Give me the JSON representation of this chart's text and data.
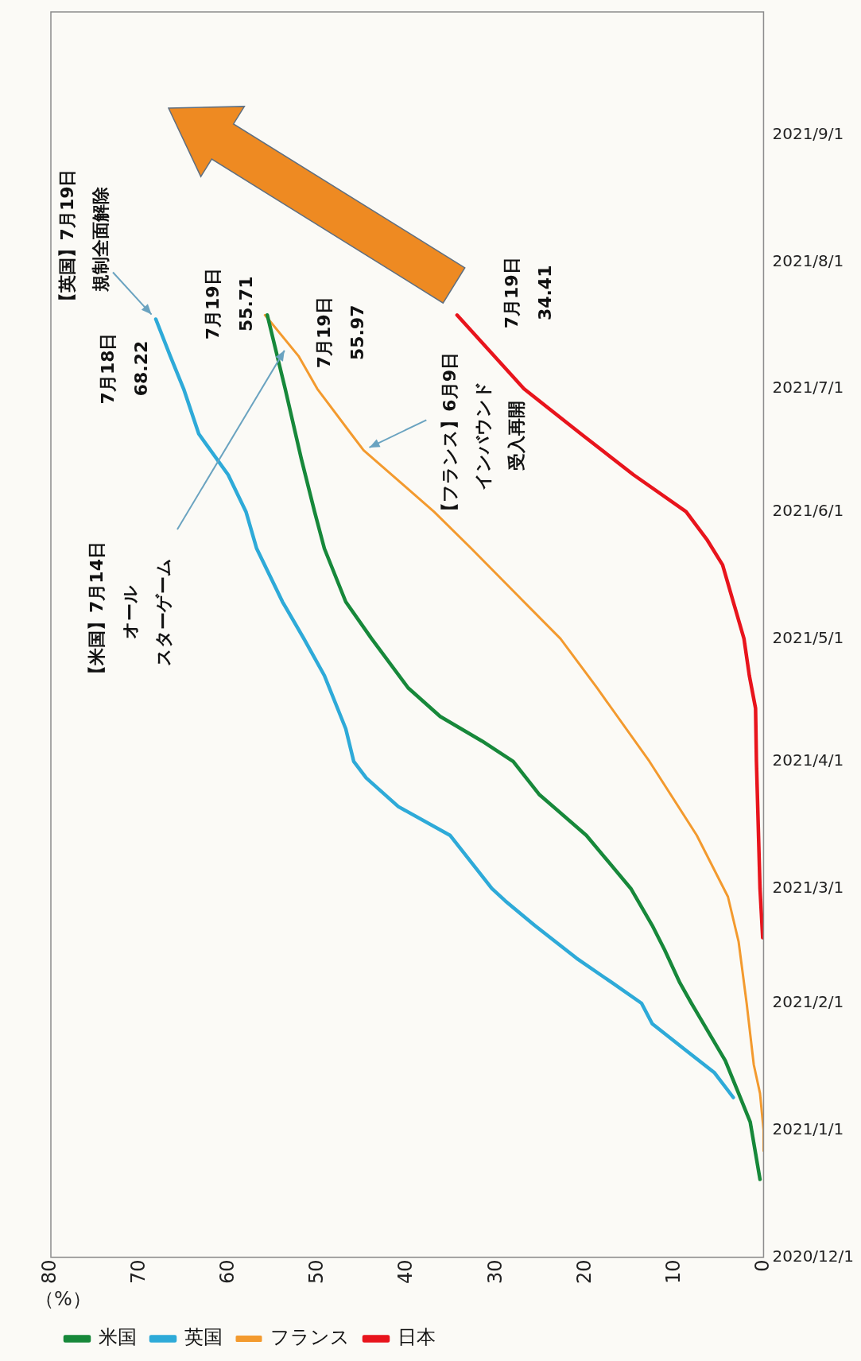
{
  "chart_data": {
    "type": "line",
    "orientation": "horizontal",
    "xlabel": "（%）",
    "legend": "bottom left",
    "ylim": [
      "2020-12-01",
      "2021-10-01"
    ],
    "yticks": [
      {
        "value": "2020-12-01",
        "label": "2020/12/1"
      },
      {
        "value": "2021-01-01",
        "label": "2021/1/1"
      },
      {
        "value": "2021-02-01",
        "label": "2021/2/1"
      },
      {
        "value": "2021-03-01",
        "label": "2021/3/1"
      },
      {
        "value": "2021-04-01",
        "label": "2021/4/1"
      },
      {
        "value": "2021-05-01",
        "label": "2021/5/1"
      },
      {
        "value": "2021-06-01",
        "label": "2021/6/1"
      },
      {
        "value": "2021-07-01",
        "label": "2021/7/1"
      },
      {
        "value": "2021-08-01",
        "label": "2021/8/1"
      },
      {
        "value": "2021-09-01",
        "label": "2021/9/1"
      }
    ],
    "xlim": [
      80,
      0
    ],
    "xticks": [
      80,
      70,
      60,
      50,
      40,
      30,
      20,
      10,
      0
    ],
    "series": [
      {
        "name": "米国",
        "color": "#17883a",
        "x": [
          "2020-12-20",
          "2021-01-03",
          "2021-01-10",
          "2021-01-18",
          "2021-02-01",
          "2021-02-06",
          "2021-02-14",
          "2021-02-20",
          "2021-03-01",
          "2021-03-14",
          "2021-03-24",
          "2021-04-01",
          "2021-04-06",
          "2021-04-12",
          "2021-04-19",
          "2021-05-01",
          "2021-05-10",
          "2021-05-23",
          "2021-06-01",
          "2021-06-14",
          "2021-07-01",
          "2021-07-19"
        ],
        "values": [
          0.4,
          1.5,
          2.8,
          4.3,
          8.1,
          9.4,
          11.1,
          12.5,
          14.9,
          19.9,
          25.2,
          28.1,
          31.6,
          36.3,
          39.9,
          44.0,
          46.9,
          49.3,
          50.4,
          51.9,
          53.7,
          55.71
        ]
      },
      {
        "name": "英国",
        "color": "#2eaad8",
        "x": [
          "2021-01-09",
          "2021-01-15",
          "2021-01-21",
          "2021-01-27",
          "2021-02-01",
          "2021-02-06",
          "2021-02-12",
          "2021-02-20",
          "2021-02-26",
          "2021-03-01",
          "2021-03-14",
          "2021-03-21",
          "2021-03-28",
          "2021-04-01",
          "2021-04-09",
          "2021-04-22",
          "2021-05-01",
          "2021-05-10",
          "2021-05-23",
          "2021-06-01",
          "2021-06-10",
          "2021-06-20",
          "2021-07-01",
          "2021-07-09",
          "2021-07-18"
        ],
        "values": [
          3.4,
          5.5,
          9.0,
          12.5,
          13.7,
          17.0,
          21.0,
          25.7,
          29.0,
          30.5,
          35.2,
          41.0,
          44.6,
          46.0,
          46.9,
          49.3,
          51.6,
          54.0,
          56.9,
          58.1,
          60.1,
          63.4,
          65.1,
          66.6,
          68.22
        ]
      },
      {
        "name": "フランス",
        "color": "#f39a2e",
        "x": [
          "2020-12-27",
          "2021-01-01",
          "2021-01-10",
          "2021-01-17",
          "2021-02-01",
          "2021-02-16",
          "2021-02-27",
          "2021-03-14",
          "2021-04-01",
          "2021-04-19",
          "2021-05-01",
          "2021-05-10",
          "2021-05-23",
          "2021-06-01",
          "2021-06-16",
          "2021-06-20",
          "2021-07-01",
          "2021-07-09",
          "2021-07-19"
        ],
        "values": [
          0,
          0,
          0.4,
          1.1,
          1.9,
          2.8,
          4.0,
          7.5,
          12.8,
          18.7,
          22.8,
          26.9,
          32.8,
          37.0,
          44.9,
          46.3,
          50.1,
          52.2,
          55.97
        ]
      },
      {
        "name": "日本",
        "color": "#e8141c",
        "x": [
          "2021-02-17",
          "2021-03-01",
          "2021-04-01",
          "2021-04-14",
          "2021-04-22",
          "2021-05-01",
          "2021-05-10",
          "2021-05-19",
          "2021-05-25",
          "2021-06-01",
          "2021-06-10",
          "2021-06-20",
          "2021-07-01",
          "2021-07-19"
        ],
        "values": [
          0.1,
          0.4,
          0.8,
          0.9,
          1.6,
          2.2,
          3.4,
          4.6,
          6.3,
          8.7,
          14.6,
          20.5,
          26.9,
          34.41
        ]
      }
    ],
    "annotations": [
      {
        "text": "【英国】7月19日規制全面解除",
        "x": 68.22,
        "y": "2021-07-18"
      },
      {
        "text": "7月18日\n68.22",
        "x": 68.22,
        "y": "2021-07-18"
      },
      {
        "text": "7月19日\n55.71",
        "x": 55.71,
        "y": "2021-07-19"
      },
      {
        "text": "7月19日\n55.97",
        "x": 55.97,
        "y": "2021-07-19"
      },
      {
        "text": "7月19日\n34.41",
        "x": 34.41,
        "y": "2021-07-19"
      },
      "【米国】7月14日オールスターゲーム",
      {
        "text": "【フランス】6月9日インバウンド受入再開",
        "x": 44.9,
        "y": "2021-06-16"
      }
    ]
  }
}
